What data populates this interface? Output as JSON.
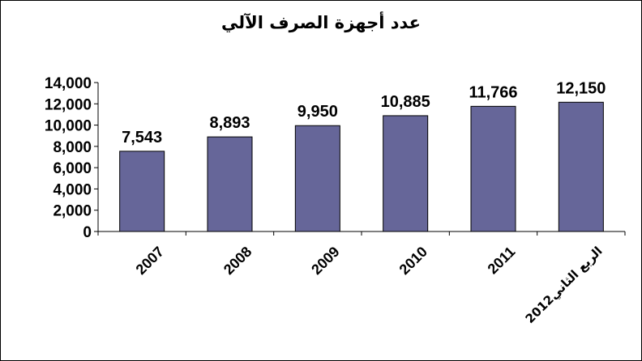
{
  "chart_data": {
    "type": "bar",
    "title": "عدد أجهزة الصرف الآلي",
    "categories": [
      "2007",
      "2008",
      "2009",
      "2010",
      "2011",
      "الربع الثاني2012"
    ],
    "values": [
      7543,
      8893,
      9950,
      10885,
      11766,
      12150
    ],
    "value_labels": [
      "7,543",
      "8,893",
      "9,950",
      "10,885",
      "11,766",
      "12,150"
    ],
    "yticks": [
      "0",
      "2,000",
      "4,000",
      "6,000",
      "8,000",
      "10,000",
      "12,000",
      "14,000"
    ],
    "ylim": [
      0,
      14000
    ],
    "xlabel": "",
    "ylabel": "",
    "grid": false,
    "legend": "none",
    "colors": {
      "bar": "#666699",
      "bar_stroke": "#000000",
      "axis": "#000000"
    }
  }
}
